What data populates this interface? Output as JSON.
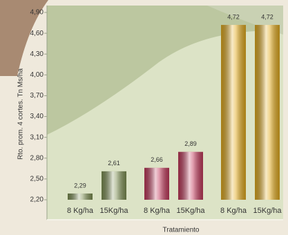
{
  "chart_data": {
    "type": "bar",
    "y_label": "Rto. prom. 4 cortes. Tn Ms/ha",
    "x_label": "Tratamiento",
    "categories": [
      "8 Kg/ha",
      "15Kg/ha",
      "8 Kg/ha",
      "15Kg/ha",
      "8 Kg/ha",
      "15Kg/ha"
    ],
    "values": [
      2.29,
      2.61,
      2.66,
      2.89,
      4.72,
      4.72
    ],
    "value_labels": [
      "2,29",
      "2,61",
      "2,66",
      "2,89",
      "4,72",
      "4,72"
    ],
    "colors": [
      "#7f9154",
      "#7f9154",
      "#c23a5c",
      "#c23a5c",
      "#e2ab1f",
      "#e2ab1f"
    ],
    "ylim": [
      2.2,
      4.9
    ],
    "yticks": [
      {
        "value": 2.2,
        "label": "2,20"
      },
      {
        "value": 2.5,
        "label": "2,50"
      },
      {
        "value": 2.8,
        "label": "2,80"
      },
      {
        "value": 3.1,
        "label": "3,10"
      },
      {
        "value": 3.4,
        "label": "3,40"
      },
      {
        "value": 3.7,
        "label": "3,70"
      },
      {
        "value": 4.0,
        "label": "4,00"
      },
      {
        "value": 4.3,
        "label": "4,30"
      },
      {
        "value": 4.6,
        "label": "4,60"
      },
      {
        "value": 4.9,
        "label": "4,90"
      }
    ],
    "grid": false
  }
}
